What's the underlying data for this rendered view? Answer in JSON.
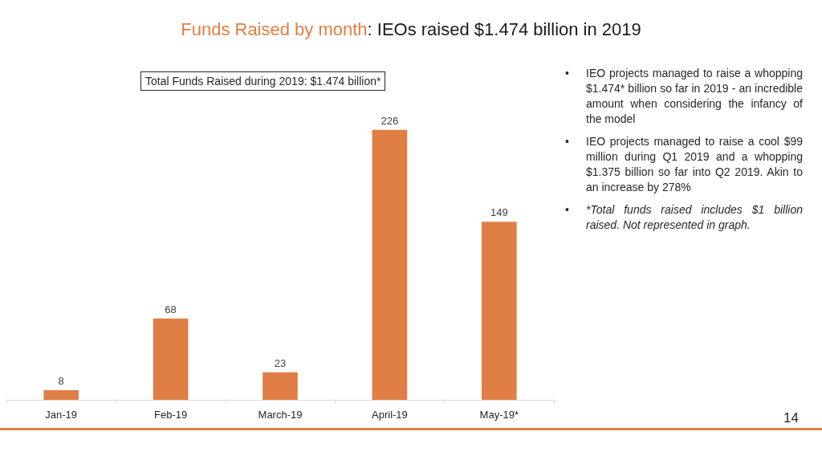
{
  "chart_data": {
    "type": "bar",
    "title": "Funds Raised by month: IEOs raised $1.474 billion in 2019",
    "categories": [
      "Jan-19",
      "Feb-19",
      "March-19",
      "April-19",
      "May-19*"
    ],
    "values": [
      8,
      68,
      23,
      226,
      149
    ],
    "color": "#e07f45",
    "data_labels": true,
    "annotations": [
      "Total Funds Raised during 2019: $1.474 billion*",
      "• IEO projects managed to raise a whopping $1.474* billion so far in 2019 - an incredible amount when considering the infancy of the model",
      "• IEO projects managed to raise a cool $99 million during Q1 2019 and a whopping $1.375 billion so far into Q2 2019. Akin to an increase by 278%",
      "• *Total funds raised includes $1 billion raised. Not represented in graph.",
      "14"
    ]
  }
}
